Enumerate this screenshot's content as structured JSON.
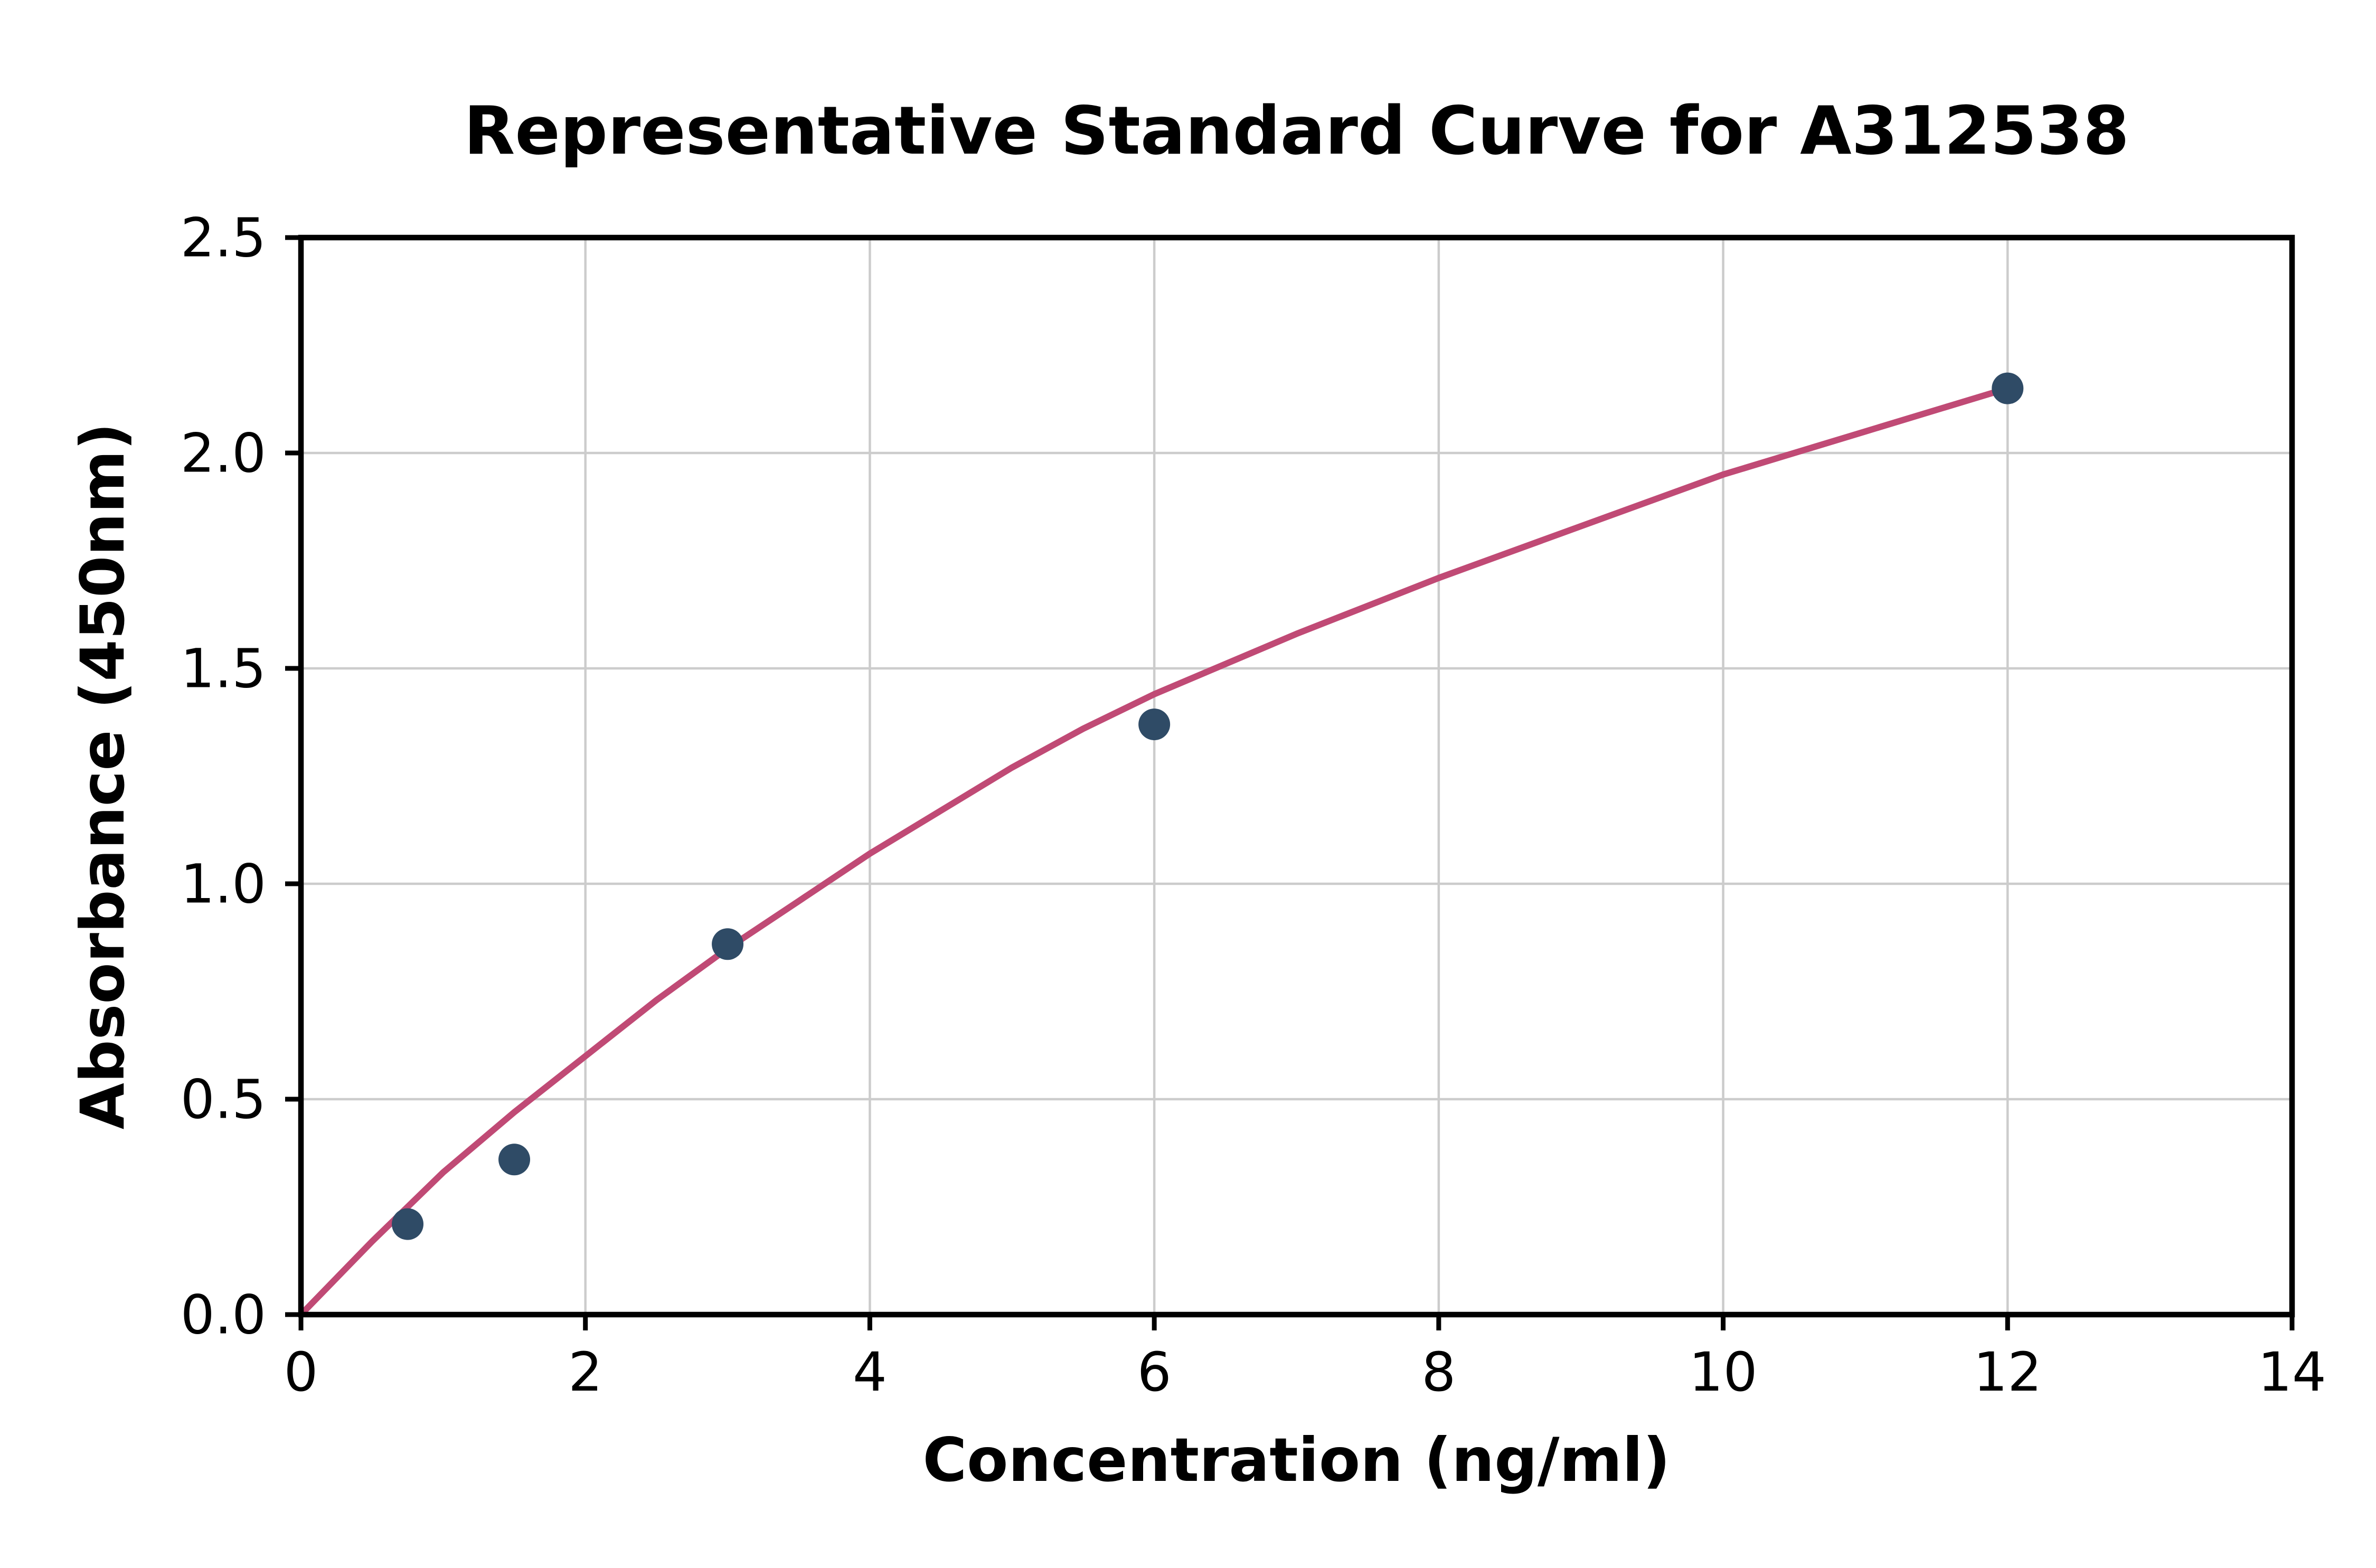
{
  "chart_data": {
    "type": "scatter",
    "title": "Representative Standard Curve for A312538",
    "xlabel": "Concentration (ng/ml)",
    "ylabel": "Absorbance (450nm)",
    "xlim": [
      0,
      14
    ],
    "ylim": [
      0,
      2.5
    ],
    "xticks": [
      "0",
      "2",
      "4",
      "6",
      "8",
      "10",
      "12",
      "14"
    ],
    "yticks": [
      "0.0",
      "0.5",
      "1.0",
      "1.5",
      "2.0",
      "2.5"
    ],
    "grid": true,
    "legend": "none",
    "points": [
      [
        0.75,
        0.21
      ],
      [
        1.5,
        0.36
      ],
      [
        3,
        0.86
      ],
      [
        6,
        1.37
      ],
      [
        12,
        2.15
      ]
    ],
    "trendline": [
      [
        0,
        0.0
      ],
      [
        0.5,
        0.17
      ],
      [
        1,
        0.33
      ],
      [
        1.5,
        0.47
      ],
      [
        2,
        0.6
      ],
      [
        2.5,
        0.73
      ],
      [
        3,
        0.85
      ],
      [
        3.5,
        0.96
      ],
      [
        4,
        1.07
      ],
      [
        4.5,
        1.17
      ],
      [
        5,
        1.27
      ],
      [
        5.5,
        1.36
      ],
      [
        6,
        1.44
      ],
      [
        7,
        1.58
      ],
      [
        8,
        1.71
      ],
      [
        9,
        1.83
      ],
      [
        10,
        1.95
      ],
      [
        11,
        2.05
      ],
      [
        12,
        2.15
      ]
    ],
    "colors": {
      "points": "#2f4b66",
      "line": "#c04a75",
      "grid": "#cccccc",
      "axis": "#000000",
      "background": "#ffffff"
    }
  }
}
